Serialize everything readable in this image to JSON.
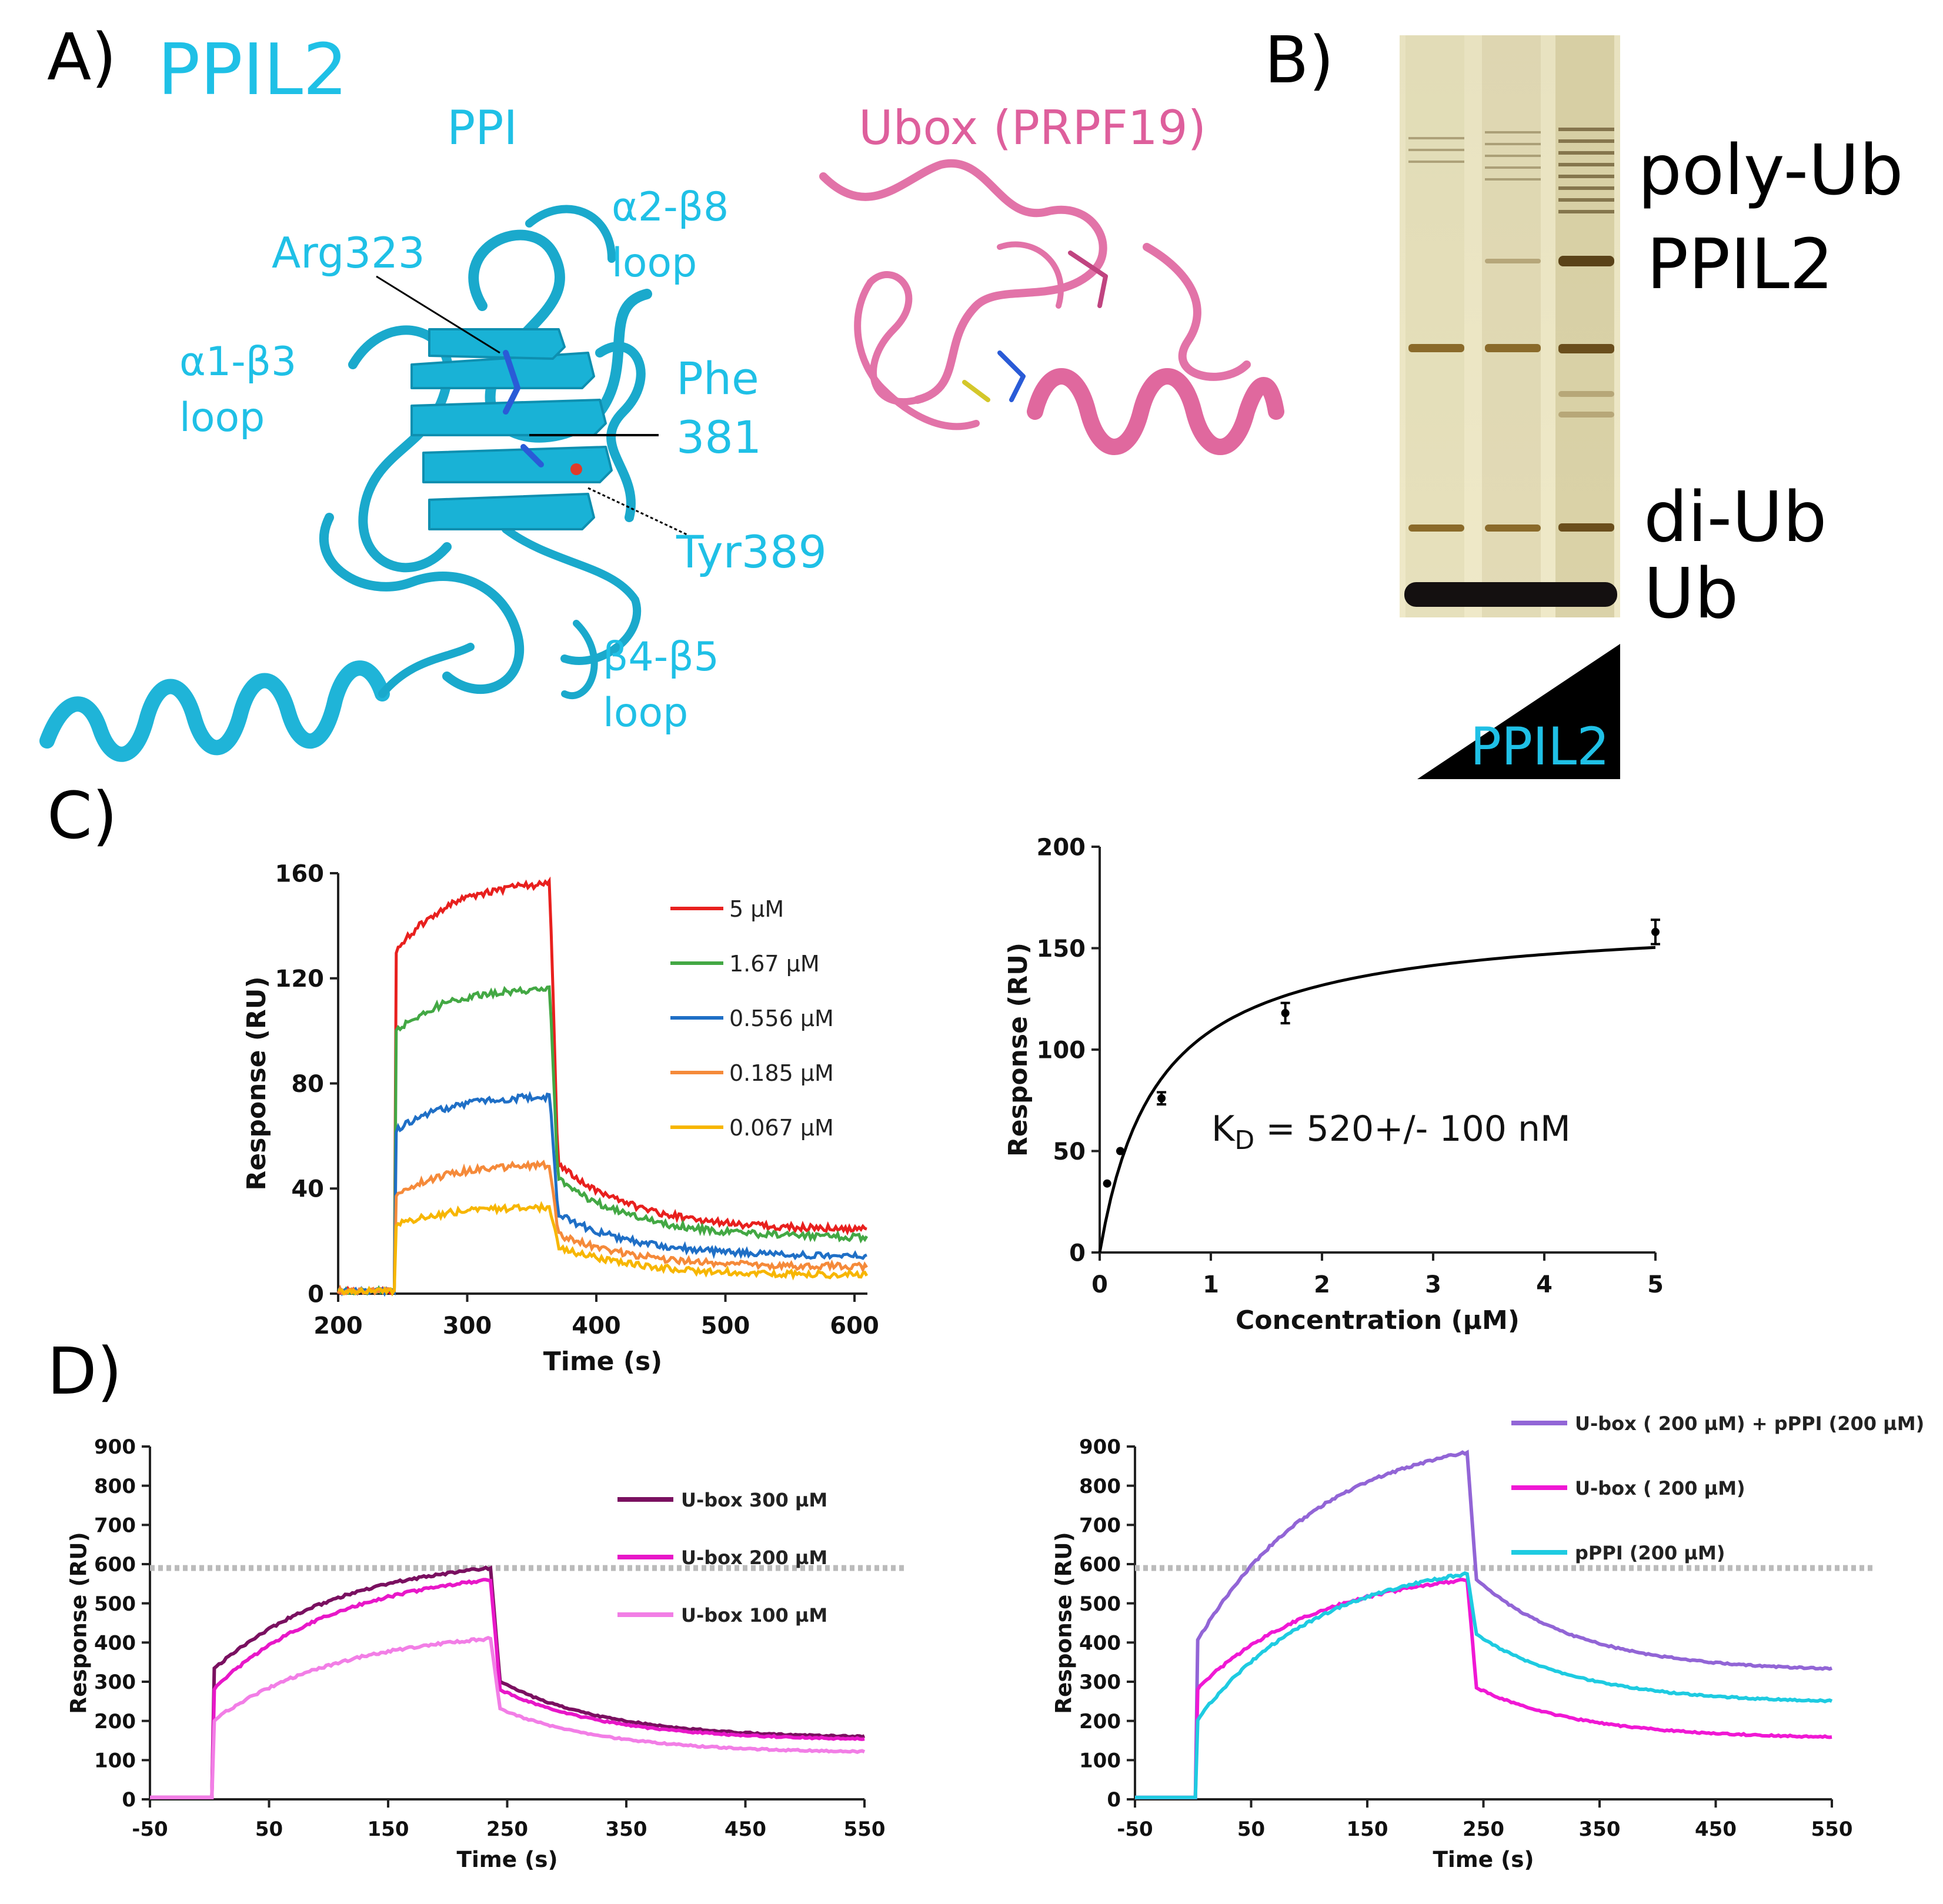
{
  "colors": {
    "ppil2": "#1fc0e6",
    "ubox": "#de5f9c",
    "black": "#000000"
  },
  "panelA": {
    "label": "A)",
    "title": "PPIL2",
    "ppi_label": "PPI",
    "ubox_label": "Ubox (PRPF19)",
    "annotations": {
      "arg": "Arg323",
      "a2b8_1": "α2-β8",
      "a2b8_2": "loop",
      "a1b3_1": "α1-β3",
      "a1b3_2": "loop",
      "phe_1": "Phe",
      "phe_2": "381",
      "tyr": "Tyr389",
      "b4b5_1": "β4-β5",
      "b4b5_2": "loop"
    }
  },
  "panelB": {
    "label": "B)",
    "bands": [
      "poly-Ub",
      "PPIL2",
      "di-Ub",
      "Ub"
    ],
    "wedge_label": "PPIL2"
  },
  "panelC": {
    "label": "C)",
    "kd_text": "K",
    "kd_sub": "D",
    "kd_rest": " = 520+/- 100 nM"
  },
  "panelD": {
    "label": "D)"
  },
  "chart_data": [
    {
      "id": "C-left",
      "type": "line",
      "xlabel": "Time (s)",
      "ylabel": "Response (RU)",
      "xlim": [
        200,
        610
      ],
      "ylim": [
        0,
        160
      ],
      "xticks": [
        "200",
        "300",
        "400",
        "500",
        "600"
      ],
      "yticks": [
        "0",
        "40",
        "80",
        "120",
        "160"
      ],
      "x_tick_values": [
        200,
        300,
        400,
        500,
        600
      ],
      "y_tick_values": [
        0,
        40,
        80,
        120,
        160
      ],
      "legend_position": "top-right",
      "injection": [
        245,
        364
      ],
      "series": [
        {
          "name": "5 µM",
          "color": "#e8201e",
          "rise": 130,
          "plateau": 156,
          "post_drop": 52,
          "end": 24
        },
        {
          "name": "1.67 µM",
          "color": "#43a844",
          "rise": 100,
          "plateau": 116,
          "post_drop": 46,
          "end": 21
        },
        {
          "name": "0.556 µM",
          "color": "#1f6fc6",
          "rise": 62,
          "plateau": 75,
          "post_drop": 32,
          "end": 14
        },
        {
          "name": "0.185 µM",
          "color": "#f58a3a",
          "rise": 38,
          "plateau": 49,
          "post_drop": 24,
          "end": 10
        },
        {
          "name": "0.067 µM",
          "color": "#f7b600",
          "rise": 26,
          "plateau": 33,
          "post_drop": 19,
          "end": 7
        }
      ]
    },
    {
      "id": "C-right",
      "type": "scatter",
      "xlabel": "Concentration (µM)",
      "ylabel": "Response (RU)",
      "xlim": [
        0,
        5
      ],
      "ylim": [
        0,
        200
      ],
      "xticks": [
        "0",
        "1",
        "2",
        "3",
        "4",
        "5"
      ],
      "yticks": [
        "0",
        "50",
        "100",
        "150",
        "200"
      ],
      "x_tick_values": [
        0,
        1,
        2,
        3,
        4,
        5
      ],
      "y_tick_values": [
        0,
        50,
        100,
        150,
        200
      ],
      "points": [
        {
          "x": 0.067,
          "y": 34,
          "err": 0
        },
        {
          "x": 0.185,
          "y": 50,
          "err": 0
        },
        {
          "x": 0.556,
          "y": 76,
          "err": 3
        },
        {
          "x": 1.67,
          "y": 118,
          "err": 5
        },
        {
          "x": 5,
          "y": 158,
          "err": 6
        }
      ],
      "fit": {
        "model": "langmuir",
        "Rmax": 166,
        "Kd": 0.52
      }
    },
    {
      "id": "D-left",
      "type": "line",
      "xlabel": "Time (s)",
      "ylabel": "Response (RU)",
      "xlim": [
        -50,
        550
      ],
      "ylim": [
        0,
        900
      ],
      "xticks": [
        "-50",
        "50",
        "150",
        "250",
        "350",
        "450",
        "550"
      ],
      "yticks": [
        "0",
        "100",
        "200",
        "300",
        "400",
        "500",
        "600",
        "700",
        "800",
        "900"
      ],
      "x_tick_values": [
        -50,
        50,
        150,
        250,
        350,
        450,
        550
      ],
      "y_tick_values": [
        0,
        100,
        200,
        300,
        400,
        500,
        600,
        700,
        800,
        900
      ],
      "reference_line": 590,
      "legend_position": "right",
      "injection": [
        3,
        236
      ],
      "series": [
        {
          "name": "U-box  300 µM",
          "color": "#7a1060",
          "start": 330,
          "peak": 590,
          "post": 300,
          "end": 155
        },
        {
          "name": "U-box  200 µM",
          "color": "#e817c8",
          "start": 280,
          "peak": 560,
          "post": 280,
          "end": 150
        },
        {
          "name": "U-box 100 µM",
          "color": "#f27ee6",
          "start": 200,
          "peak": 410,
          "post": 230,
          "end": 118
        }
      ]
    },
    {
      "id": "D-right",
      "type": "line",
      "xlabel": "Time (s)",
      "ylabel": "Response (RU)",
      "xlim": [
        -50,
        550
      ],
      "ylim": [
        0,
        900
      ],
      "xticks": [
        "-50",
        "50",
        "150",
        "250",
        "350",
        "450",
        "550"
      ],
      "yticks": [
        "0",
        "100",
        "200",
        "300",
        "400",
        "500",
        "600",
        "700",
        "800",
        "900"
      ],
      "x_tick_values": [
        -50,
        50,
        150,
        250,
        350,
        450,
        550
      ],
      "y_tick_values": [
        0,
        100,
        200,
        300,
        400,
        500,
        600,
        700,
        800,
        900
      ],
      "reference_line": 590,
      "legend_position": "top",
      "injection": [
        3,
        236
      ],
      "series": [
        {
          "name": "U-box ( 200 µM) + pPPI (200 µM)",
          "color": "#9265d6",
          "start": 400,
          "peak": 885,
          "post": 560,
          "end": 325
        },
        {
          "name": "U-box ( 200 µM)",
          "color": "#f018d4",
          "start": 280,
          "peak": 560,
          "post": 285,
          "end": 155
        },
        {
          "name": "pPPI (200 µM)",
          "color": "#1ecbe1",
          "start": 200,
          "peak": 575,
          "post": 420,
          "end": 245
        }
      ]
    }
  ]
}
